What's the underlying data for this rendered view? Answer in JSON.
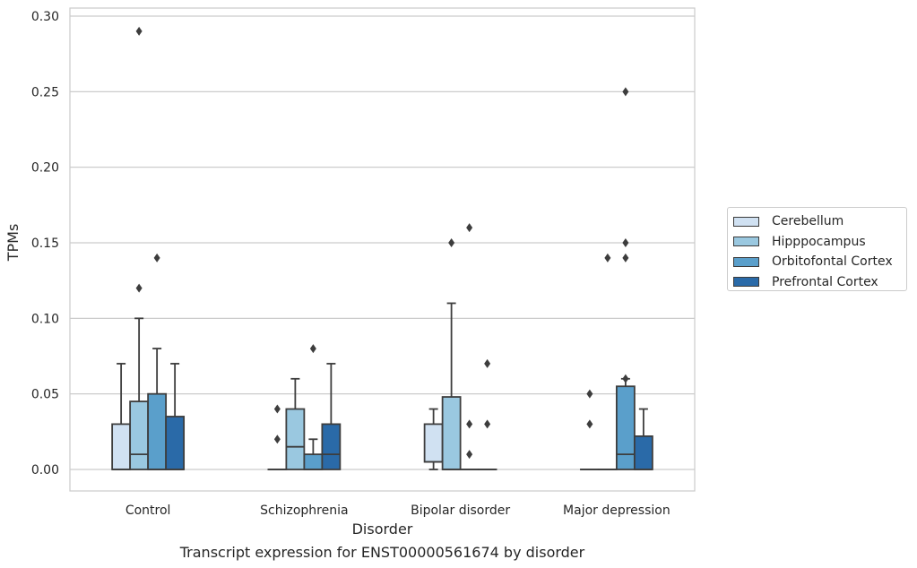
{
  "chart_data": {
    "type": "boxplot",
    "title": "Transcript expression for ENST00000561674 by disorder",
    "xlabel": "Disorder",
    "ylabel": "TPMs",
    "ylim": [
      -0.014,
      0.305
    ],
    "yticks": [
      "0.00",
      "0.05",
      "0.10",
      "0.15",
      "0.20",
      "0.25",
      "0.30"
    ],
    "ytick_values": [
      0,
      0.05,
      0.1,
      0.15,
      0.2,
      0.25,
      0.3
    ],
    "categories": [
      "Control",
      "Schizophrenia",
      "Bipolar disorder",
      "Major depression"
    ],
    "grid": "horizontal",
    "legend_position": "right",
    "series": [
      {
        "name": "Cerebellum",
        "color": "#d0e1f2",
        "boxes": [
          {
            "q1": 0.0,
            "median": 0.0,
            "q3": 0.03,
            "whisker_low": 0.0,
            "whisker_high": 0.07,
            "outliers": []
          },
          {
            "q1": 0.0,
            "median": 0.0,
            "q3": 0.0,
            "whisker_low": 0.0,
            "whisker_high": 0.0,
            "outliers": [
              0.04,
              0.02
            ]
          },
          {
            "q1": 0.005,
            "median": 0.005,
            "q3": 0.03,
            "whisker_low": 0.0,
            "whisker_high": 0.04,
            "outliers": []
          },
          {
            "q1": 0.0,
            "median": 0.0,
            "q3": 0.0,
            "whisker_low": 0.0,
            "whisker_high": 0.0,
            "outliers": [
              0.05,
              0.03
            ]
          }
        ]
      },
      {
        "name": "Hipppocampus",
        "color": "#9ac8e0",
        "boxes": [
          {
            "q1": 0.0,
            "median": 0.01,
            "q3": 0.045,
            "whisker_low": 0.0,
            "whisker_high": 0.1,
            "outliers": [
              0.29,
              0.12
            ]
          },
          {
            "q1": 0.0,
            "median": 0.015,
            "q3": 0.04,
            "whisker_low": 0.0,
            "whisker_high": 0.06,
            "outliers": []
          },
          {
            "q1": 0.0,
            "median": 0.0,
            "q3": 0.048,
            "whisker_low": 0.0,
            "whisker_high": 0.11,
            "outliers": [
              0.15
            ]
          },
          {
            "q1": 0.0,
            "median": 0.0,
            "q3": 0.0,
            "whisker_low": 0.0,
            "whisker_high": 0.0,
            "outliers": [
              0.14
            ]
          }
        ]
      },
      {
        "name": "Orbitofontal Cortex",
        "color": "#5a9fcb",
        "boxes": [
          {
            "q1": 0.0,
            "median": 0.0,
            "q3": 0.05,
            "whisker_low": 0.0,
            "whisker_high": 0.08,
            "outliers": [
              0.14
            ]
          },
          {
            "q1": 0.0,
            "median": 0.0,
            "q3": 0.01,
            "whisker_low": 0.0,
            "whisker_high": 0.02,
            "outliers": [
              0.08
            ]
          },
          {
            "q1": 0.0,
            "median": 0.0,
            "q3": 0.0,
            "whisker_low": 0.0,
            "whisker_high": 0.0,
            "outliers": [
              0.16,
              0.03,
              0.01
            ]
          },
          {
            "q1": 0.0,
            "median": 0.01,
            "q3": 0.055,
            "whisker_low": 0.0,
            "whisker_high": 0.06,
            "outliers": [
              0.25,
              0.15,
              0.14,
              0.06
            ]
          }
        ]
      },
      {
        "name": "Prefrontal Cortex",
        "color": "#2a6aa8",
        "boxes": [
          {
            "q1": 0.0,
            "median": 0.0,
            "q3": 0.035,
            "whisker_low": 0.0,
            "whisker_high": 0.07,
            "outliers": []
          },
          {
            "q1": 0.0,
            "median": 0.01,
            "q3": 0.03,
            "whisker_low": 0.0,
            "whisker_high": 0.07,
            "outliers": []
          },
          {
            "q1": 0.0,
            "median": 0.0,
            "q3": 0.0,
            "whisker_low": 0.0,
            "whisker_high": 0.0,
            "outliers": [
              0.07,
              0.03
            ]
          },
          {
            "q1": 0.0,
            "median": 0.0,
            "q3": 0.022,
            "whisker_low": 0.0,
            "whisker_high": 0.04,
            "outliers": []
          }
        ]
      }
    ]
  }
}
